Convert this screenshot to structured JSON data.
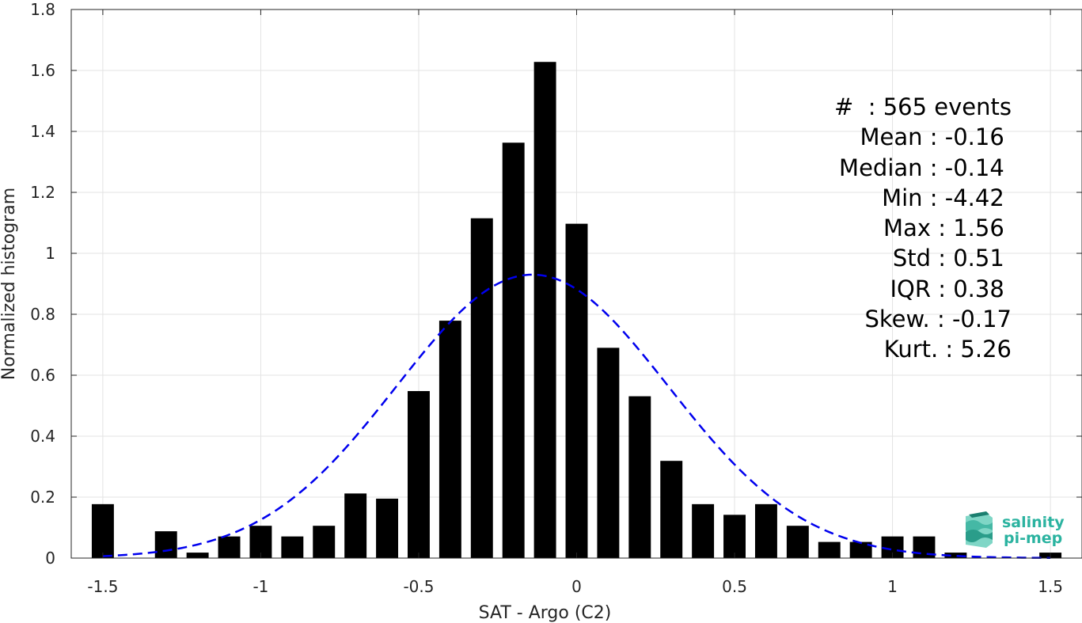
{
  "chart_data": {
    "type": "bar",
    "xlabel": "SAT - Argo (C2)",
    "ylabel": "Normalized histogram",
    "xlim": [
      -1.6,
      1.6
    ],
    "ylim": [
      0,
      1.8
    ],
    "xticks": [
      -1.5,
      -1,
      -0.5,
      0,
      0.5,
      1,
      1.5
    ],
    "xtick_labels": [
      "-1.5",
      "-1",
      "-0.5",
      "0",
      "0.5",
      "1",
      "1.5"
    ],
    "yticks": [
      0,
      0.2,
      0.4,
      0.6,
      0.8,
      1,
      1.2,
      1.4,
      1.6,
      1.8
    ],
    "ytick_labels": [
      "0",
      "0.2",
      "0.4",
      "0.6",
      "0.8",
      "1",
      "1.2",
      "1.4",
      "1.6",
      "1.8"
    ],
    "grid": true,
    "bar_width": 0.07,
    "bar_color": "#000000",
    "bins": [
      {
        "x": -1.5,
        "value": 0.177
      },
      {
        "x": -1.4,
        "value": 0.0
      },
      {
        "x": -1.3,
        "value": 0.088
      },
      {
        "x": -1.2,
        "value": 0.018
      },
      {
        "x": -1.1,
        "value": 0.071
      },
      {
        "x": -1.0,
        "value": 0.106
      },
      {
        "x": -0.9,
        "value": 0.071
      },
      {
        "x": -0.8,
        "value": 0.106
      },
      {
        "x": -0.7,
        "value": 0.212
      },
      {
        "x": -0.6,
        "value": 0.195
      },
      {
        "x": -0.5,
        "value": 0.548
      },
      {
        "x": -0.4,
        "value": 0.779
      },
      {
        "x": -0.3,
        "value": 1.115
      },
      {
        "x": -0.2,
        "value": 1.363
      },
      {
        "x": -0.1,
        "value": 1.628
      },
      {
        "x": 0.0,
        "value": 1.097
      },
      {
        "x": 0.1,
        "value": 0.69
      },
      {
        "x": 0.2,
        "value": 0.531
      },
      {
        "x": 0.3,
        "value": 0.319
      },
      {
        "x": 0.4,
        "value": 0.177
      },
      {
        "x": 0.5,
        "value": 0.142
      },
      {
        "x": 0.6,
        "value": 0.177
      },
      {
        "x": 0.7,
        "value": 0.106
      },
      {
        "x": 0.8,
        "value": 0.053
      },
      {
        "x": 0.9,
        "value": 0.053
      },
      {
        "x": 1.0,
        "value": 0.071
      },
      {
        "x": 1.1,
        "value": 0.071
      },
      {
        "x": 1.2,
        "value": 0.018
      },
      {
        "x": 1.3,
        "value": 0.0
      },
      {
        "x": 1.4,
        "value": 0.0
      },
      {
        "x": 1.5,
        "value": 0.018
      }
    ],
    "fit_curve": {
      "type": "gaussian",
      "mean": -0.14,
      "std": 0.43,
      "peak": 0.93,
      "x_range": [
        -1.5,
        1.5
      ],
      "color": "#0000ee",
      "style": "dashed"
    }
  },
  "stats": {
    "count": "#  : 565 events",
    "mean": "Mean : -0.16 ",
    "median": "Median : -0.14 ",
    "min": "Min : -4.42 ",
    "max": "Max : 1.56 ",
    "std": "Std : 0.51 ",
    "iqr": "IQR : 0.38 ",
    "skew": "Skew. : -0.17",
    "kurt": "Kurt. : 5.26"
  },
  "logo": {
    "line1": "salinity",
    "line2": "pi-mep",
    "color": "#2bb3a0"
  }
}
